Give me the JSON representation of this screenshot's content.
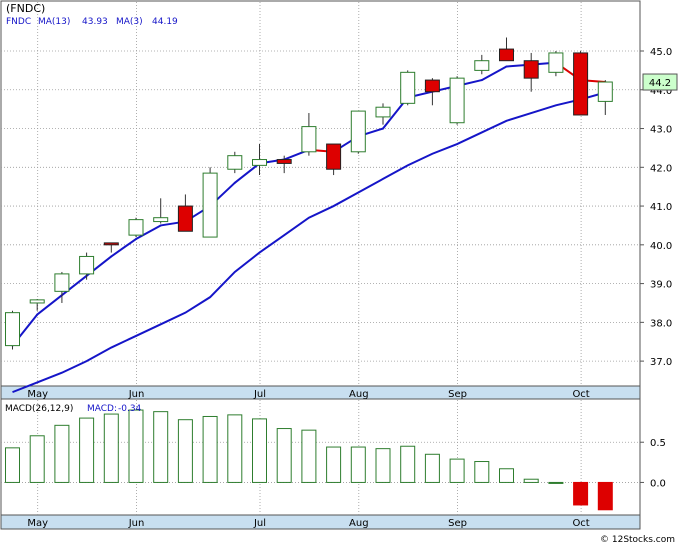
{
  "colors": {
    "up_candle": "#2e7d2e",
    "down_candle": "#dd0000",
    "ma_line": "#1515c8",
    "axis_band": "#c8dff0",
    "grid": "#9a9a9a",
    "price_box_bg": "#ccffcc",
    "macd_bar": "#2e7d2e",
    "macd_neg": "#dd0000"
  },
  "chart_data": [
    {
      "type": "candlestick",
      "ticker": "FNDC",
      "legend": {
        "ticker_label": "(FNDC)",
        "ma13_label": "MA(13)",
        "ma13_value": "43.93",
        "ma3_label": "MA(3)",
        "ma3_value": "44.19"
      },
      "price_label": "44.2",
      "ylim": [
        36.1,
        45.8
      ],
      "y_ticks": [
        37.0,
        38.0,
        39.0,
        40.0,
        41.0,
        42.0,
        43.0,
        44.0,
        45.0
      ],
      "y_tick_labels": [
        "37.0",
        "38.0",
        "39.0",
        "40.0",
        "41.0",
        "42.0",
        "43.0",
        "44.0",
        "45.0"
      ],
      "x_tick_labels": [
        "May",
        "Jun",
        "Jul",
        "Aug",
        "Sep",
        "Oct"
      ],
      "x_tick_index": [
        1,
        5,
        10,
        14,
        18,
        23
      ],
      "grid": true,
      "candles": [
        {
          "open": 37.4,
          "high": 38.3,
          "low": 37.3,
          "close": 38.25
        },
        {
          "open": 38.5,
          "high": 38.6,
          "low": 38.3,
          "close": 38.58
        },
        {
          "open": 38.8,
          "high": 39.3,
          "low": 38.5,
          "close": 39.25
        },
        {
          "open": 39.25,
          "high": 39.8,
          "low": 39.1,
          "close": 39.7
        },
        {
          "open": 40.05,
          "high": 40.05,
          "low": 39.8,
          "close": 40.0
        },
        {
          "open": 40.25,
          "high": 40.7,
          "low": 40.2,
          "close": 40.65
        },
        {
          "open": 40.6,
          "high": 41.2,
          "low": 40.55,
          "close": 40.7
        },
        {
          "open": 41.0,
          "high": 41.3,
          "low": 40.35,
          "close": 40.35
        },
        {
          "open": 40.2,
          "high": 42.0,
          "low": 40.2,
          "close": 41.85
        },
        {
          "open": 41.95,
          "high": 42.4,
          "low": 41.85,
          "close": 42.3
        },
        {
          "open": 42.05,
          "high": 42.6,
          "low": 41.8,
          "close": 42.2
        },
        {
          "open": 42.2,
          "high": 42.3,
          "low": 41.85,
          "close": 42.1
        },
        {
          "open": 42.4,
          "high": 43.4,
          "low": 42.3,
          "close": 43.05
        },
        {
          "open": 42.6,
          "high": 42.6,
          "low": 41.8,
          "close": 41.95
        },
        {
          "open": 42.4,
          "high": 43.45,
          "low": 42.35,
          "close": 43.45
        },
        {
          "open": 43.3,
          "high": 43.65,
          "low": 43.1,
          "close": 43.55
        },
        {
          "open": 43.65,
          "high": 44.5,
          "low": 43.6,
          "close": 44.45
        },
        {
          "open": 44.25,
          "high": 44.3,
          "low": 43.6,
          "close": 43.95
        },
        {
          "open": 43.15,
          "high": 44.35,
          "low": 43.1,
          "close": 44.3
        },
        {
          "open": 44.5,
          "high": 44.9,
          "low": 44.4,
          "close": 44.75
        },
        {
          "open": 45.05,
          "high": 45.35,
          "low": 44.75,
          "close": 44.75
        },
        {
          "open": 44.75,
          "high": 44.95,
          "low": 43.95,
          "close": 44.3
        },
        {
          "open": 44.45,
          "high": 45.0,
          "low": 44.35,
          "close": 44.95
        },
        {
          "open": 44.95,
          "high": 45.0,
          "low": 43.35,
          "close": 43.35
        },
        {
          "open": 43.7,
          "high": 44.25,
          "low": 43.35,
          "close": 44.2
        }
      ],
      "ma_fast": [
        37.4,
        38.2,
        38.7,
        39.2,
        39.7,
        40.15,
        40.5,
        40.6,
        41.0,
        41.6,
        42.1,
        42.2,
        42.45,
        42.4,
        42.8,
        43.0,
        43.8,
        43.95,
        44.1,
        44.25,
        44.6,
        44.65,
        44.7,
        44.25,
        44.2
      ],
      "ma_slow": [
        36.2,
        36.45,
        36.7,
        37.0,
        37.35,
        37.65,
        37.95,
        38.25,
        38.65,
        39.3,
        39.8,
        40.25,
        40.7,
        41.0,
        41.35,
        41.7,
        42.05,
        42.35,
        42.6,
        42.9,
        43.2,
        43.4,
        43.6,
        43.75,
        43.93
      ]
    },
    {
      "type": "bar",
      "legend": {
        "label": "MACD(26,12,9)",
        "value_label": "MACD:",
        "value": "-0.34"
      },
      "ylim": [
        -0.38,
        1.0
      ],
      "y_ticks": [
        0.5,
        0.0
      ],
      "y_tick_labels": [
        "0.5",
        "0.0"
      ],
      "x_tick_labels": [
        "May",
        "Jun",
        "Jul",
        "Aug",
        "Sep",
        "Oct"
      ],
      "x_tick_index": [
        1,
        5,
        10,
        14,
        18,
        23
      ],
      "values": [
        0.43,
        0.58,
        0.71,
        0.8,
        0.85,
        0.9,
        0.88,
        0.78,
        0.82,
        0.84,
        0.79,
        0.67,
        0.65,
        0.44,
        0.44,
        0.42,
        0.45,
        0.35,
        0.29,
        0.26,
        0.17,
        0.04,
        0.0,
        -0.28,
        -0.34
      ]
    }
  ],
  "watermark": "© 12Stocks.com"
}
